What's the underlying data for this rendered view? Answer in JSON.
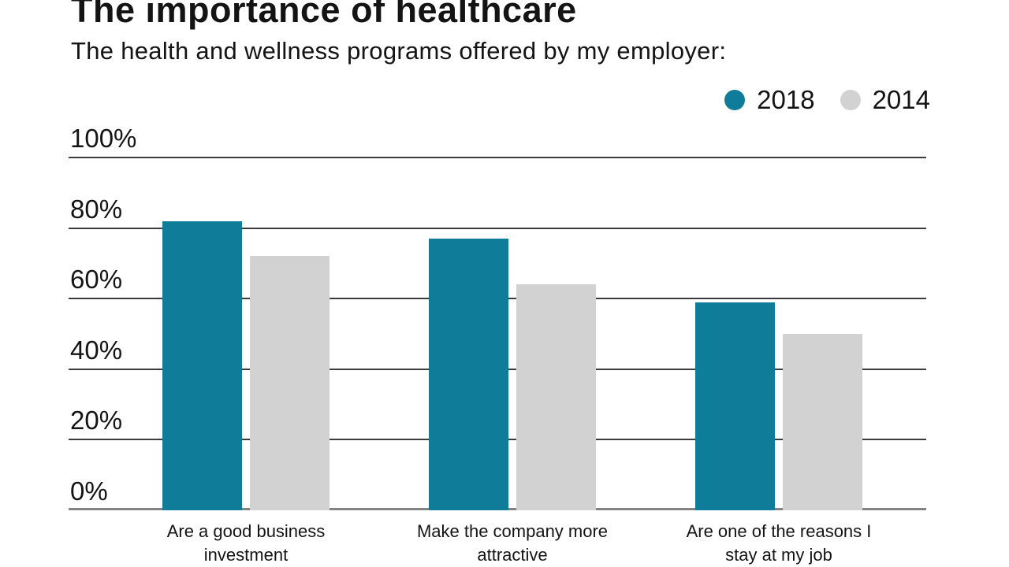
{
  "header": {
    "title": "The importance of healthcare",
    "subtitle": "The health and wellness programs offered by my employer:"
  },
  "legend": {
    "items": [
      {
        "label": "2018",
        "color": "#0f7d9a"
      },
      {
        "label": "2014",
        "color": "#d2d2d2"
      }
    ]
  },
  "chart_data": {
    "type": "bar",
    "title": "The importance of healthcare",
    "subtitle": "The health and wellness programs offered by my employer:",
    "categories": [
      "Are a good business investment",
      "Make the company more attractive",
      "Are one of the reasons I stay at my job"
    ],
    "series": [
      {
        "name": "2018",
        "color": "#0f7d9a",
        "values": [
          82,
          77,
          59
        ]
      },
      {
        "name": "2014",
        "color": "#d2d2d2",
        "values": [
          72,
          64,
          50
        ]
      }
    ],
    "xlabel": "",
    "ylabel": "",
    "ylim": [
      0,
      100
    ],
    "y_ticks": [
      {
        "value": 0,
        "label": "0%"
      },
      {
        "value": 20,
        "label": "20%"
      },
      {
        "value": 40,
        "label": "40%"
      },
      {
        "value": 60,
        "label": "60%"
      },
      {
        "value": 80,
        "label": "80%"
      },
      {
        "value": 100,
        "label": "100%"
      }
    ],
    "grid": true,
    "legend_position": "top-right"
  },
  "colors": {
    "background": "#ffffff",
    "gridline": "#3b3b3b",
    "baseline": "#838383",
    "text": "#141414"
  }
}
